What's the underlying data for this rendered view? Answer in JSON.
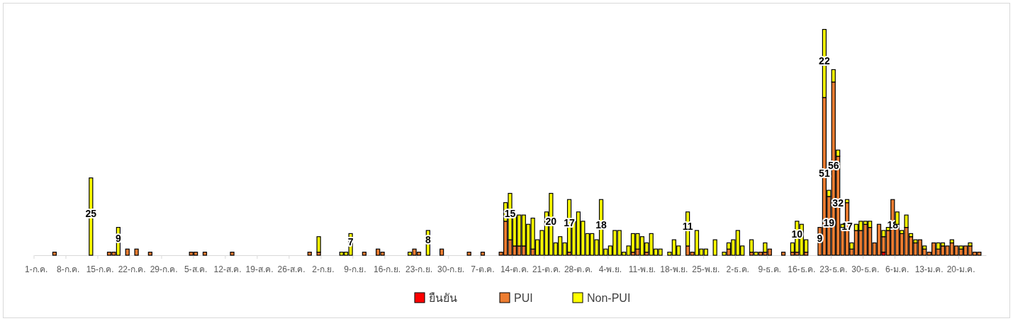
{
  "chart_data": {
    "type": "bar",
    "stacked": true,
    "legend": "bottom",
    "grid": false,
    "categories": [
      "1-ก.ค.",
      null,
      null,
      null,
      null,
      null,
      null,
      "8-ก.ค.",
      null,
      null,
      null,
      null,
      null,
      null,
      "15-ก.ค.",
      null,
      null,
      null,
      null,
      null,
      null,
      "22-ก.ค.",
      null,
      null,
      null,
      null,
      null,
      null,
      "29-ก.ค.",
      null,
      null,
      null,
      null,
      null,
      null,
      "5-ส.ค.",
      null,
      null,
      null,
      null,
      null,
      null,
      "12-ส.ค.",
      null,
      null,
      null,
      null,
      null,
      null,
      "19-ส.ค.",
      null,
      null,
      null,
      null,
      null,
      null,
      "26-ส.ค.",
      null,
      null,
      null,
      null,
      null,
      null,
      "2-ก.ย.",
      null,
      null,
      null,
      null,
      null,
      null,
      "9-ก.ย.",
      null,
      null,
      null,
      null,
      null,
      null,
      "16-ก.ย.",
      null,
      null,
      null,
      null,
      null,
      null,
      "23-ก.ย.",
      null,
      null,
      null,
      null,
      null,
      null,
      "30-ก.ย.",
      null,
      null,
      null,
      null,
      null,
      null,
      "7-ต.ค.",
      null,
      null,
      null,
      null,
      null,
      null,
      "14-ต.ค.",
      null,
      null,
      null,
      null,
      null,
      null,
      "21-ต.ค.",
      null,
      null,
      null,
      null,
      null,
      null,
      "28-ต.ค.",
      null,
      null,
      null,
      null,
      null,
      null,
      "4-พ.ย.",
      null,
      null,
      null,
      null,
      null,
      null,
      "11-พ.ย.",
      null,
      null,
      null,
      null,
      null,
      null,
      "18-พ.ย.",
      null,
      null,
      null,
      null,
      null,
      null,
      "25-พ.ย.",
      null,
      null,
      null,
      null,
      null,
      null,
      "2-ธ.ค.",
      null,
      null,
      null,
      null,
      null,
      null,
      "9-ธ.ค.",
      null,
      null,
      null,
      null,
      null,
      null,
      "16-ธ.ค.",
      null,
      null,
      null,
      null,
      null,
      null,
      "23-ธ.ค.",
      null,
      null,
      null,
      null,
      null,
      null,
      "30-ธ.ค.",
      null,
      null,
      null,
      null,
      null,
      null,
      "6-ม.ค.",
      null,
      null,
      null,
      null,
      null,
      null,
      "13-ม.ค.",
      null,
      null,
      null,
      null,
      null,
      null,
      "20-ม.ค.",
      null,
      null,
      null,
      null,
      null
    ],
    "series": [
      {
        "name": "ยืนยัน",
        "color": "#ff0000",
        "values": [
          null,
          null,
          null,
          null,
          null,
          null,
          null,
          null,
          null,
          null,
          null,
          null,
          null,
          null,
          null,
          null,
          null,
          null,
          null,
          null,
          null,
          null,
          null,
          null,
          null,
          null,
          null,
          null,
          null,
          null,
          null,
          null,
          null,
          null,
          null,
          null,
          null,
          null,
          null,
          null,
          null,
          null,
          null,
          null,
          null,
          null,
          null,
          null,
          null,
          null,
          null,
          null,
          null,
          null,
          null,
          null,
          null,
          null,
          null,
          null,
          null,
          null,
          null,
          null,
          null,
          null,
          null,
          null,
          null,
          null,
          null,
          null,
          null,
          null,
          null,
          null,
          null,
          null,
          null,
          null,
          null,
          null,
          null,
          null,
          null,
          null,
          null,
          null,
          null,
          null,
          null,
          null,
          null,
          null,
          null,
          null,
          null,
          null,
          null,
          null,
          null,
          null,
          null,
          null,
          null,
          null,
          null,
          null,
          null,
          null,
          null,
          null,
          null,
          null,
          null,
          null,
          null,
          null,
          null,
          null,
          null,
          null,
          null,
          null,
          null,
          null,
          null,
          null,
          null,
          null,
          null,
          null,
          null,
          null,
          null,
          null,
          null,
          null,
          null,
          null,
          null,
          null,
          null,
          null,
          null,
          null,
          null,
          null,
          null,
          null,
          null,
          null,
          null,
          null,
          null,
          null,
          null,
          null,
          null,
          null,
          null,
          null,
          null,
          null,
          null,
          null,
          null,
          null,
          null,
          null,
          null,
          null,
          null,
          null,
          null,
          null,
          null,
          null,
          null,
          null,
          null,
          null,
          null,
          null,
          null,
          null,
          1,
          null,
          null,
          null,
          null,
          null,
          null,
          null,
          null,
          null,
          null,
          null,
          null,
          null,
          null,
          null,
          null,
          null,
          null,
          null,
          null,
          null,
          null
        ]
      },
      {
        "name": "PUI",
        "color": "#ed7d31",
        "values": [
          null,
          null,
          null,
          null,
          1,
          null,
          null,
          null,
          null,
          null,
          null,
          null,
          null,
          null,
          null,
          null,
          1,
          1,
          null,
          null,
          2,
          null,
          2,
          null,
          null,
          1,
          null,
          null,
          null,
          null,
          null,
          null,
          null,
          null,
          1,
          1,
          null,
          1,
          null,
          null,
          null,
          null,
          null,
          1,
          null,
          null,
          null,
          null,
          null,
          null,
          null,
          null,
          null,
          null,
          null,
          null,
          null,
          null,
          null,
          null,
          1,
          null,
          1,
          null,
          null,
          null,
          null,
          null,
          null,
          null,
          null,
          null,
          1,
          null,
          null,
          2,
          1,
          null,
          null,
          null,
          null,
          null,
          null,
          2,
          1,
          null,
          null,
          null,
          null,
          2,
          null,
          null,
          null,
          null,
          null,
          1,
          null,
          null,
          1,
          null,
          null,
          null,
          1,
          11,
          5,
          3,
          3,
          3,
          null,
          2,
          null,
          null,
          null,
          null,
          null,
          null,
          null,
          1,
          null,
          null,
          null,
          null,
          null,
          null,
          null,
          null,
          null,
          null,
          null,
          null,
          null,
          1,
          2,
          null,
          1,
          null,
          null,
          null,
          null,
          null,
          null,
          null,
          null,
          3,
          1,
          null,
          null,
          null,
          null,
          null,
          null,
          null,
          2,
          null,
          null,
          null,
          null,
          1,
          null,
          1,
          1,
          2,
          null,
          null,
          1,
          null,
          1,
          1,
          null,
          1,
          null,
          null,
          9,
          51,
          19,
          56,
          32,
          9,
          17,
          2,
          8,
          8,
          10,
          9,
          4,
          10,
          5,
          8,
          18,
          10,
          7,
          9,
          6,
          4,
          5,
          2,
          1,
          4,
          2,
          3,
          3,
          4,
          3,
          2,
          3,
          3,
          1,
          1,
          null
        ],
        "value_labels": [
          null,
          null,
          null,
          null,
          null,
          null,
          null,
          null,
          null,
          null,
          null,
          null,
          null,
          null,
          null,
          null,
          null,
          null,
          null,
          null,
          null,
          null,
          null,
          null,
          null,
          null,
          null,
          null,
          null,
          null,
          null,
          null,
          null,
          null,
          null,
          null,
          null,
          null,
          null,
          null,
          null,
          null,
          null,
          null,
          null,
          null,
          null,
          null,
          null,
          null,
          null,
          null,
          null,
          null,
          null,
          null,
          null,
          null,
          null,
          null,
          null,
          null,
          null,
          null,
          null,
          null,
          null,
          null,
          null,
          null,
          null,
          null,
          null,
          null,
          null,
          null,
          null,
          null,
          null,
          null,
          null,
          null,
          null,
          null,
          null,
          null,
          null,
          null,
          null,
          null,
          null,
          null,
          null,
          null,
          null,
          null,
          null,
          null,
          null,
          null,
          null,
          null,
          null,
          null,
          null,
          null,
          null,
          null,
          null,
          null,
          null,
          null,
          null,
          null,
          null,
          null,
          null,
          null,
          null,
          null,
          null,
          null,
          null,
          null,
          null,
          null,
          null,
          null,
          null,
          null,
          null,
          null,
          null,
          null,
          null,
          null,
          null,
          null,
          null,
          null,
          null,
          null,
          null,
          null,
          null,
          null,
          null,
          null,
          null,
          null,
          null,
          null,
          null,
          null,
          null,
          null,
          null,
          null,
          null,
          null,
          null,
          null,
          null,
          null,
          null,
          null,
          null,
          null,
          null,
          null,
          null,
          null,
          "9",
          "51",
          "19",
          "56",
          "32",
          null,
          "17",
          null,
          null,
          null,
          null,
          null,
          null,
          null,
          null,
          null,
          "18",
          null,
          null,
          null,
          null,
          null,
          null,
          null,
          null,
          null,
          null,
          null,
          null,
          null,
          null,
          null,
          null,
          null,
          null,
          null,
          null
        ]
      },
      {
        "name": "Non-PUI",
        "color": "#ffff00",
        "values": [
          null,
          null,
          null,
          null,
          null,
          null,
          null,
          null,
          null,
          null,
          null,
          null,
          25,
          null,
          null,
          null,
          null,
          null,
          9,
          null,
          null,
          null,
          null,
          null,
          null,
          null,
          null,
          null,
          null,
          null,
          null,
          null,
          null,
          null,
          null,
          null,
          null,
          null,
          null,
          null,
          null,
          null,
          null,
          null,
          null,
          null,
          null,
          null,
          null,
          null,
          null,
          null,
          null,
          null,
          null,
          null,
          null,
          null,
          null,
          null,
          null,
          null,
          5,
          null,
          null,
          null,
          null,
          1,
          1,
          7,
          null,
          null,
          null,
          null,
          null,
          null,
          null,
          null,
          null,
          null,
          null,
          null,
          1,
          null,
          null,
          null,
          8,
          null,
          null,
          null,
          null,
          null,
          null,
          null,
          null,
          null,
          null,
          null,
          null,
          null,
          null,
          null,
          null,
          6,
          15,
          10,
          10,
          10,
          10,
          10,
          5,
          8,
          14,
          20,
          4,
          6,
          4,
          17,
          11,
          14,
          11,
          7,
          7,
          5,
          18,
          2,
          3,
          8,
          8,
          1,
          3,
          6,
          5,
          6,
          3,
          7,
          2,
          2,
          null,
          1,
          5,
          3,
          null,
          11,
          null,
          8,
          2,
          2,
          null,
          5,
          null,
          1,
          2,
          5,
          8,
          3,
          null,
          4,
          1,
          null,
          3,
          null,
          null,
          null,
          null,
          null,
          3,
          10,
          10,
          4,
          null,
          null,
          null,
          22,
          2,
          4,
          2,
          1,
          1,
          2,
          2,
          3,
          1,
          2,
          null,
          null,
          2,
          1,
          null,
          4,
          1,
          4,
          1,
          1,
          null,
          1,
          null,
          null,
          2,
          1,
          null,
          1,
          null,
          1,
          null,
          1,
          null,
          null,
          null
        ],
        "value_labels": [
          null,
          null,
          null,
          null,
          null,
          null,
          null,
          null,
          null,
          null,
          null,
          null,
          "25",
          null,
          null,
          null,
          null,
          null,
          "9",
          null,
          null,
          null,
          null,
          null,
          null,
          null,
          null,
          null,
          null,
          null,
          null,
          null,
          null,
          null,
          null,
          null,
          null,
          null,
          null,
          null,
          null,
          null,
          null,
          null,
          null,
          null,
          null,
          null,
          null,
          null,
          null,
          null,
          null,
          null,
          null,
          null,
          null,
          null,
          null,
          null,
          null,
          null,
          null,
          null,
          null,
          null,
          null,
          null,
          null,
          "7",
          null,
          null,
          null,
          null,
          null,
          null,
          null,
          null,
          null,
          null,
          null,
          null,
          null,
          null,
          null,
          null,
          "8",
          null,
          null,
          null,
          null,
          null,
          null,
          null,
          null,
          null,
          null,
          null,
          null,
          null,
          null,
          null,
          null,
          null,
          "15",
          null,
          null,
          null,
          null,
          null,
          null,
          null,
          null,
          "20",
          null,
          null,
          null,
          "17",
          null,
          null,
          null,
          null,
          null,
          null,
          "18",
          null,
          null,
          null,
          null,
          null,
          null,
          null,
          null,
          null,
          null,
          null,
          null,
          null,
          null,
          null,
          null,
          null,
          null,
          "11",
          null,
          null,
          null,
          null,
          null,
          null,
          null,
          null,
          null,
          null,
          null,
          null,
          null,
          null,
          null,
          null,
          null,
          null,
          null,
          null,
          null,
          null,
          null,
          "10",
          null,
          null,
          null,
          null,
          null,
          "22",
          null,
          null,
          null,
          null,
          null,
          null,
          null,
          null,
          null,
          null,
          null,
          null,
          null,
          null,
          null,
          null,
          null,
          null,
          null,
          null,
          null,
          null,
          null,
          null,
          null,
          null,
          null,
          null,
          null,
          null,
          null,
          null,
          null,
          null,
          null
        ]
      }
    ]
  }
}
